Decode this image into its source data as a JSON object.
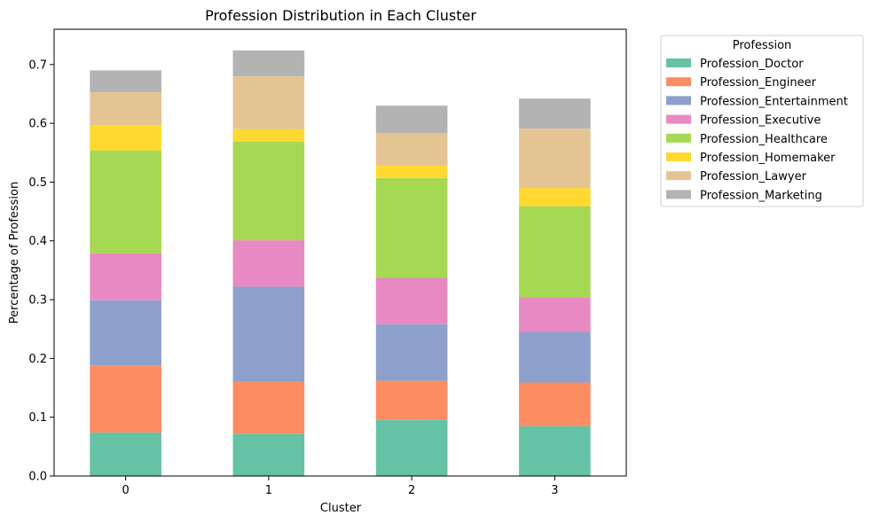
{
  "chart_data": {
    "type": "bar",
    "stacked": true,
    "title": "Profession Distribution in Each Cluster",
    "xlabel": "Cluster",
    "ylabel": "Percentage of Profession",
    "categories": [
      "0",
      "1",
      "2",
      "3"
    ],
    "ylim": [
      0,
      0.76
    ],
    "yticks": [
      0.0,
      0.1,
      0.2,
      0.3,
      0.4,
      0.5,
      0.6,
      0.7
    ],
    "ytick_labels": [
      "0.0",
      "0.1",
      "0.2",
      "0.3",
      "0.4",
      "0.5",
      "0.6",
      "0.7"
    ],
    "grid": false,
    "legend": {
      "title": "Profession",
      "placement": "outside-right"
    },
    "series": [
      {
        "name": "Profession_Doctor",
        "color": "#66c2a5",
        "values": [
          0.074,
          0.072,
          0.096,
          0.085
        ]
      },
      {
        "name": "Profession_Engineer",
        "color": "#fc8d62",
        "values": [
          0.114,
          0.088,
          0.066,
          0.074
        ]
      },
      {
        "name": "Profession_Entertainment",
        "color": "#8da0cb",
        "values": [
          0.111,
          0.162,
          0.096,
          0.086
        ]
      },
      {
        "name": "Profession_Executive",
        "color": "#e78ac3",
        "values": [
          0.08,
          0.079,
          0.079,
          0.059
        ]
      },
      {
        "name": "Profession_Healthcare",
        "color": "#a6d854",
        "values": [
          0.175,
          0.168,
          0.17,
          0.155
        ]
      },
      {
        "name": "Profession_Homemaker",
        "color": "#ffd92f",
        "values": [
          0.043,
          0.021,
          0.021,
          0.031
        ]
      },
      {
        "name": "Profession_Lawyer",
        "color": "#e5c494",
        "values": [
          0.056,
          0.09,
          0.055,
          0.101
        ]
      },
      {
        "name": "Profession_Marketing",
        "color": "#b3b3b3",
        "values": [
          0.037,
          0.044,
          0.047,
          0.051
        ]
      }
    ]
  }
}
